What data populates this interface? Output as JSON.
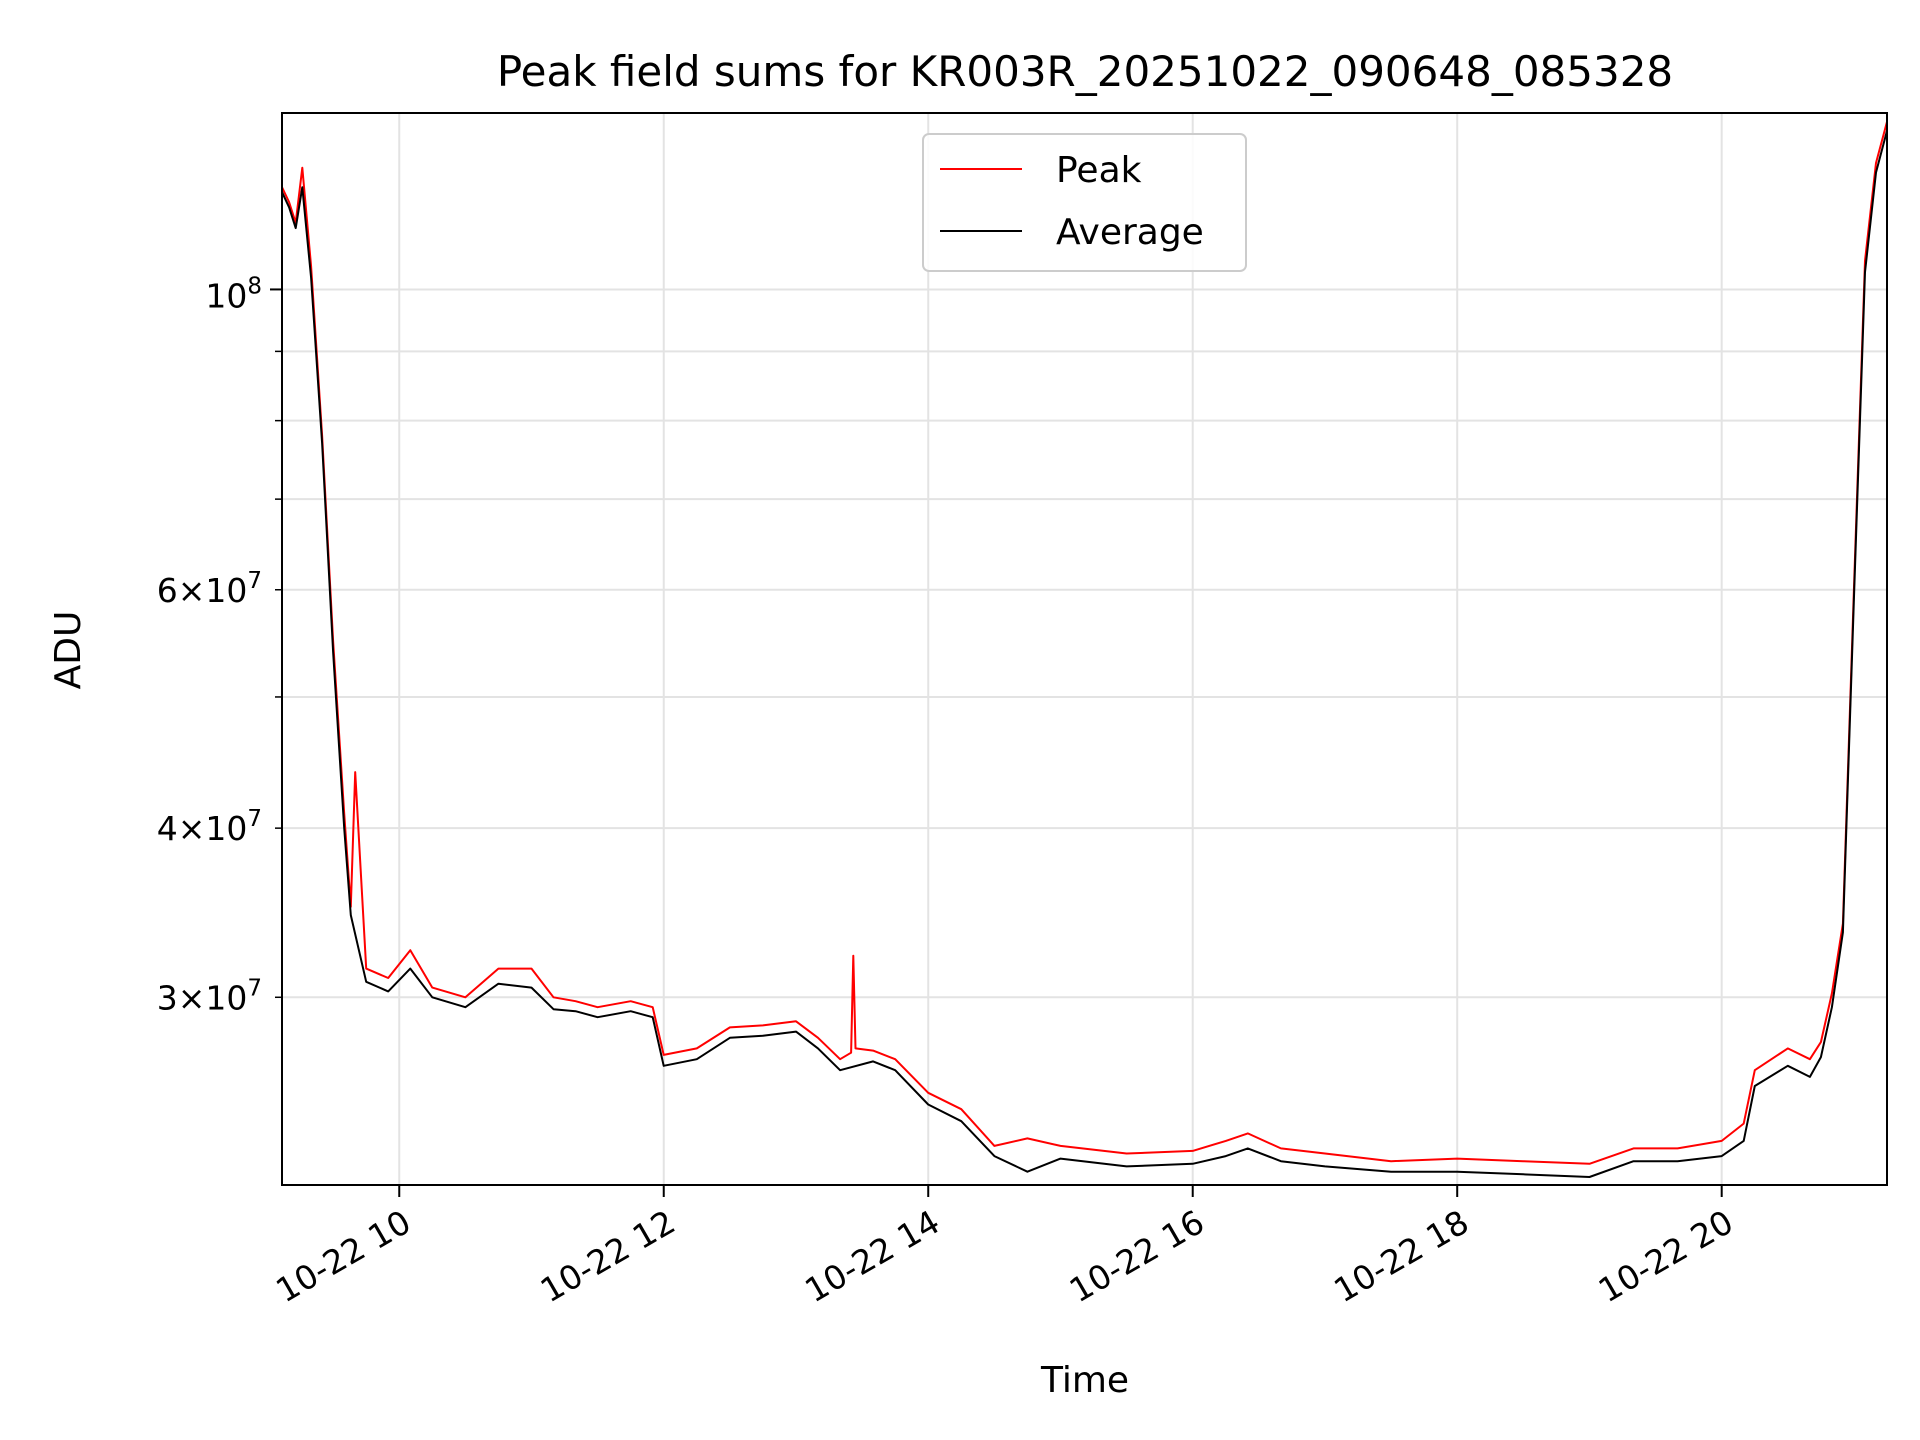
{
  "chart_data": {
    "type": "line",
    "title": "Peak field sums for KR003R_20251022_090648_085328",
    "xlabel": "Time",
    "ylabel": "ADU",
    "y_scale": "log",
    "grid": true,
    "legend_position": "upper center",
    "xlim": [
      "2025-10-22T09:06:48",
      "2025-10-22T21:15:00"
    ],
    "ylim": [
      21800000,
      135000000
    ],
    "x_ticks": [
      "2025-10-22T10:00",
      "2025-10-22T12:00",
      "2025-10-22T14:00",
      "2025-10-22T16:00",
      "2025-10-22T18:00",
      "2025-10-22T20:00"
    ],
    "x_tick_labels": [
      "10-22 10",
      "10-22 12",
      "10-22 14",
      "10-22 16",
      "10-22 18",
      "10-22 20"
    ],
    "y_major_ticks": [
      100000000
    ],
    "y_major_tick_labels": [
      "10^8"
    ],
    "y_minor_ticks": [
      30000000,
      40000000,
      50000000,
      60000000,
      70000000,
      80000000,
      90000000
    ],
    "y_minor_tick_labels": [
      "3×10^7",
      "4×10^7",
      "",
      "6×10^7",
      "",
      "",
      ""
    ],
    "series": [
      {
        "name": "Peak",
        "color": "#ff0000",
        "x": [
          "2025-10-22T09:06:48",
          "2025-10-22T09:10",
          "2025-10-22T09:13",
          "2025-10-22T09:16",
          "2025-10-22T09:20",
          "2025-10-22T09:25",
          "2025-10-22T09:30",
          "2025-10-22T09:35",
          "2025-10-22T09:38",
          "2025-10-22T09:40",
          "2025-10-22T09:45",
          "2025-10-22T09:55",
          "2025-10-22T10:05",
          "2025-10-22T10:15",
          "2025-10-22T10:30",
          "2025-10-22T10:45",
          "2025-10-22T11:00",
          "2025-10-22T11:10",
          "2025-10-22T11:20",
          "2025-10-22T11:30",
          "2025-10-22T11:45",
          "2025-10-22T11:55",
          "2025-10-22T12:00",
          "2025-10-22T12:15",
          "2025-10-22T12:30",
          "2025-10-22T12:45",
          "2025-10-22T13:00",
          "2025-10-22T13:10",
          "2025-10-22T13:20",
          "2025-10-22T13:25",
          "2025-10-22T13:26",
          "2025-10-22T13:27",
          "2025-10-22T13:35",
          "2025-10-22T13:45",
          "2025-10-22T14:00",
          "2025-10-22T14:15",
          "2025-10-22T14:30",
          "2025-10-22T14:45",
          "2025-10-22T15:00",
          "2025-10-22T15:30",
          "2025-10-22T16:00",
          "2025-10-22T16:15",
          "2025-10-22T16:25",
          "2025-10-22T16:40",
          "2025-10-22T17:00",
          "2025-10-22T17:30",
          "2025-10-22T18:00",
          "2025-10-22T18:30",
          "2025-10-22T19:00",
          "2025-10-22T19:20",
          "2025-10-22T19:40",
          "2025-10-22T20:00",
          "2025-10-22T20:10",
          "2025-10-22T20:15",
          "2025-10-22T20:30",
          "2025-10-22T20:40",
          "2025-10-22T20:45",
          "2025-10-22T20:50",
          "2025-10-22T20:55",
          "2025-10-22T21:00",
          "2025-10-22T21:05",
          "2025-10-22T21:10",
          "2025-10-22T21:15"
        ],
        "y": [
          119000000,
          116000000,
          112000000,
          123000000,
          104000000,
          78000000,
          55000000,
          41000000,
          35000000,
          44000000,
          31500000,
          31000000,
          32500000,
          30500000,
          30000000,
          31500000,
          31500000,
          30000000,
          29800000,
          29500000,
          29800000,
          29500000,
          27200000,
          27500000,
          28500000,
          28600000,
          28800000,
          28000000,
          27000000,
          27300000,
          32200000,
          27500000,
          27400000,
          27000000,
          25500000,
          24800000,
          23300000,
          23600000,
          23300000,
          23000000,
          23100000,
          23500000,
          23800000,
          23200000,
          23000000,
          22700000,
          22800000,
          22700000,
          22600000,
          23200000,
          23200000,
          23500000,
          24200000,
          26500000,
          27500000,
          27000000,
          27800000,
          30200000,
          34000000,
          60000000,
          105000000,
          124000000,
          133000000
        ]
      },
      {
        "name": "Average",
        "color": "#000000",
        "x": [
          "2025-10-22T09:06:48",
          "2025-10-22T09:10",
          "2025-10-22T09:13",
          "2025-10-22T09:16",
          "2025-10-22T09:20",
          "2025-10-22T09:25",
          "2025-10-22T09:30",
          "2025-10-22T09:35",
          "2025-10-22T09:38",
          "2025-10-22T09:45",
          "2025-10-22T09:55",
          "2025-10-22T10:05",
          "2025-10-22T10:15",
          "2025-10-22T10:30",
          "2025-10-22T10:45",
          "2025-10-22T11:00",
          "2025-10-22T11:10",
          "2025-10-22T11:20",
          "2025-10-22T11:30",
          "2025-10-22T11:45",
          "2025-10-22T11:55",
          "2025-10-22T12:00",
          "2025-10-22T12:15",
          "2025-10-22T12:30",
          "2025-10-22T12:45",
          "2025-10-22T13:00",
          "2025-10-22T13:10",
          "2025-10-22T13:20",
          "2025-10-22T13:35",
          "2025-10-22T13:45",
          "2025-10-22T14:00",
          "2025-10-22T14:15",
          "2025-10-22T14:30",
          "2025-10-22T14:45",
          "2025-10-22T15:00",
          "2025-10-22T15:30",
          "2025-10-22T16:00",
          "2025-10-22T16:15",
          "2025-10-22T16:25",
          "2025-10-22T16:40",
          "2025-10-22T17:00",
          "2025-10-22T17:30",
          "2025-10-22T18:00",
          "2025-10-22T18:30",
          "2025-10-22T19:00",
          "2025-10-22T19:20",
          "2025-10-22T19:40",
          "2025-10-22T20:00",
          "2025-10-22T20:10",
          "2025-10-22T20:15",
          "2025-10-22T20:30",
          "2025-10-22T20:40",
          "2025-10-22T20:45",
          "2025-10-22T20:50",
          "2025-10-22T20:55",
          "2025-10-22T21:00",
          "2025-10-22T21:05",
          "2025-10-22T21:10",
          "2025-10-22T21:15"
        ],
        "y": [
          118000000,
          115000000,
          111000000,
          119000000,
          102000000,
          77000000,
          54000000,
          40000000,
          34500000,
          30800000,
          30300000,
          31500000,
          30000000,
          29500000,
          30700000,
          30500000,
          29400000,
          29300000,
          29000000,
          29300000,
          29000000,
          26700000,
          27000000,
          28000000,
          28100000,
          28300000,
          27500000,
          26500000,
          26900000,
          26500000,
          25000000,
          24300000,
          22900000,
          22300000,
          22800000,
          22500000,
          22600000,
          22900000,
          23200000,
          22700000,
          22500000,
          22300000,
          22300000,
          22200000,
          22100000,
          22700000,
          22700000,
          22900000,
          23500000,
          25800000,
          26700000,
          26200000,
          27100000,
          29500000,
          33500000,
          59000000,
          103000000,
          122000000,
          131000000
        ]
      }
    ]
  }
}
